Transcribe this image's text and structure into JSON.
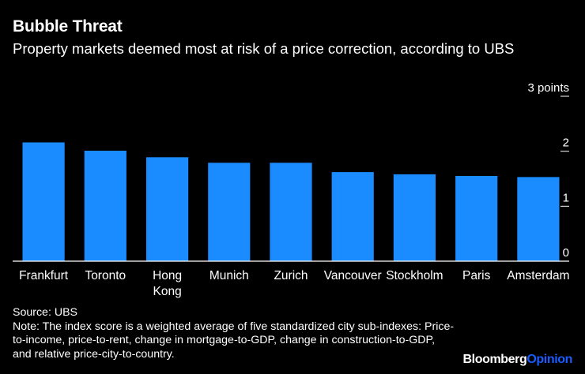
{
  "header": {
    "title": "Bubble Threat",
    "subtitle": "Property markets deemed most at risk of a price correction, according to UBS"
  },
  "chart_data": {
    "type": "bar",
    "title": "Bubble Threat",
    "subtitle": "Property markets deemed most at risk of a price correction, according to UBS",
    "categories": [
      "Frankfurt",
      "Toronto",
      "Hong Kong",
      "Munich",
      "Zurich",
      "Vancouver",
      "Stockholm",
      "Paris",
      "Amsterdam"
    ],
    "category_lines": [
      [
        "Frankfurt"
      ],
      [
        "Toronto"
      ],
      [
        "Hong",
        "Kong"
      ],
      [
        "Munich"
      ],
      [
        "Zurich"
      ],
      [
        "Vancouver"
      ],
      [
        "Stockholm"
      ],
      [
        "Paris"
      ],
      [
        "Amsterdam"
      ]
    ],
    "values": [
      2.16,
      2.01,
      1.89,
      1.79,
      1.79,
      1.62,
      1.58,
      1.55,
      1.53
    ],
    "ylim": [
      0,
      3
    ],
    "yticks": [
      0,
      1,
      2,
      3
    ],
    "ytick_labels": [
      "0",
      "1",
      "2",
      "3 points"
    ],
    "bar_color": "#1a8cff",
    "axis_color": "#ffffff",
    "grid": false
  },
  "footer": {
    "source": "Source: UBS",
    "note": "Note: The index score is a weighted average of five standardized city sub-indexes: Price-to-income, price-to-rent, change in mortgage-to-GDP, change in construction-to-GDP, and relative price-city-to-country."
  },
  "branding": {
    "logo_part1": "Bloomberg",
    "logo_part2": "Opinion",
    "accent": "#1a5cff"
  }
}
